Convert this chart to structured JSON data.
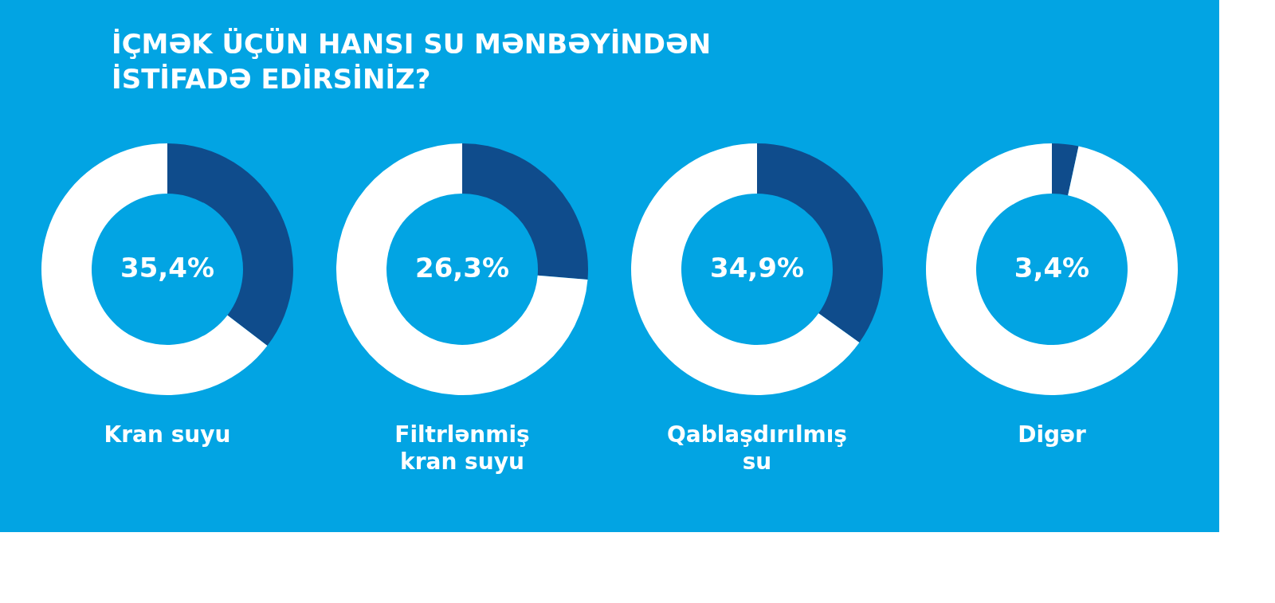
{
  "chart_data": [
    {
      "type": "other",
      "title": "İÇMƏK ÜÇÜN HANSI SU MƏNBƏYİNDƏN İSTİFADƏ EDİRSİNİZ?"
    },
    {
      "type": "donut",
      "title": "Kran suyu",
      "categories": [
        null,
        null
      ],
      "values": [
        35.4,
        64.6
      ],
      "colors": [
        "#0f4c8c",
        "#ffffff"
      ],
      "value_labels": [
        "35,4%",
        null
      ]
    },
    {
      "type": "donut",
      "title": "Filtrlənmiş kran suyu",
      "categories": [
        null,
        null
      ],
      "values": [
        26.3,
        73.7
      ],
      "colors": [
        "#0f4c8c",
        "#ffffff"
      ],
      "value_labels": [
        "26,3%",
        null
      ]
    },
    {
      "type": "donut",
      "title": "Qablaşdırılmış su",
      "categories": [
        null,
        null
      ],
      "values": [
        34.9,
        65.1
      ],
      "colors": [
        "#0f4c8c",
        "#ffffff"
      ],
      "value_labels": [
        "34,9%",
        null
      ]
    },
    {
      "type": "donut",
      "title": "Digər",
      "categories": [
        null,
        null
      ],
      "values": [
        3.4,
        96.6
      ],
      "colors": [
        "#0f4c8c",
        "#ffffff"
      ],
      "value_labels": [
        "3,4%",
        null
      ]
    }
  ]
}
